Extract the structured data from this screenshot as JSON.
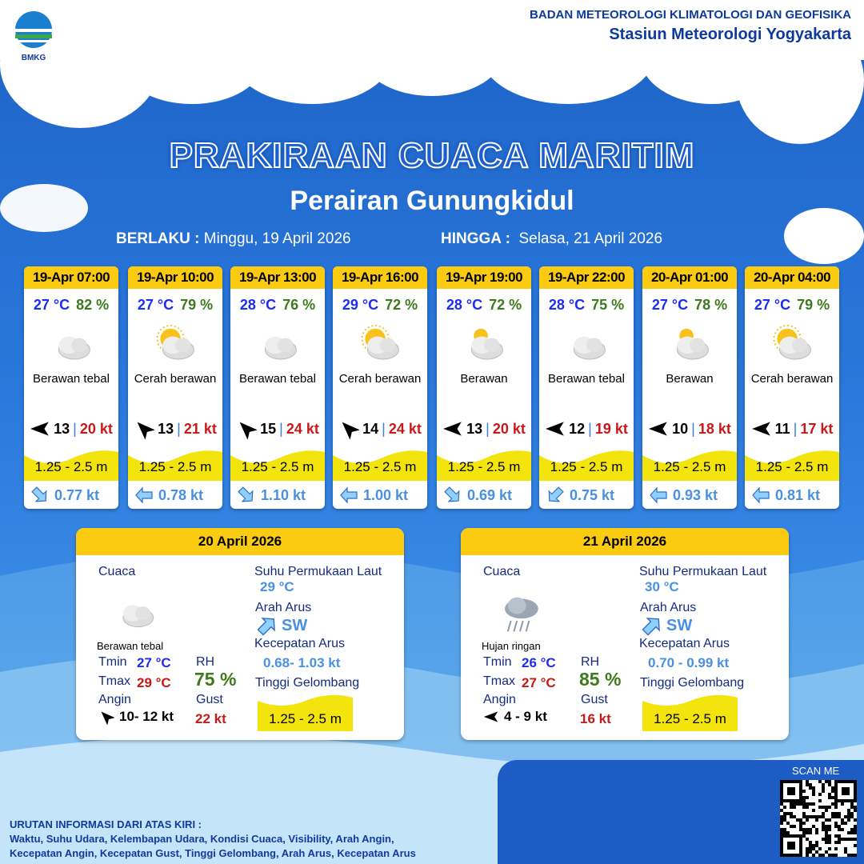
{
  "org": {
    "logo_text": "BMKG",
    "line1": "BADAN METEOROLOGI KLIMATOLOGI DAN GEOFISIKA",
    "line2": "Stasiun Meteorologi Yogyakarta"
  },
  "title": "PRAKIRAAN CUACA MARITIM",
  "subtitle": "Perairan Gunungkidul",
  "validity": {
    "from_label": "BERLAKU :",
    "from": "Minggu, 19 April 2026",
    "to_label": "HINGGA :",
    "to": "Selasa, 21 April 2026"
  },
  "forecasts": [
    {
      "time": "19-Apr 07:00",
      "temp": "27 °C",
      "rh": "82 %",
      "icon": "cloudy",
      "cond": "Berawan tebal",
      "wind_dir": "E",
      "wind": "13",
      "gust": "20 kt",
      "wave": "1.25 - 2.5 m",
      "current_dir": "NW",
      "current": "0.77 kt"
    },
    {
      "time": "19-Apr 10:00",
      "temp": "27 °C",
      "rh": "79 %",
      "icon": "partly-sunny",
      "cond": "Cerah berawan",
      "wind_dir": "SE",
      "wind": "13",
      "gust": "21 kt",
      "wave": "1.25 - 2.5 m",
      "current_dir": "E",
      "current": "0.78 kt"
    },
    {
      "time": "19-Apr 13:00",
      "temp": "28 °C",
      "rh": "76 %",
      "icon": "cloudy",
      "cond": "Berawan tebal",
      "wind_dir": "SE",
      "wind": "15",
      "gust": "24 kt",
      "wave": "1.25 - 2.5 m",
      "current_dir": "NW",
      "current": "1.10 kt"
    },
    {
      "time": "19-Apr 16:00",
      "temp": "29 °C",
      "rh": "72 %",
      "icon": "partly-sunny",
      "cond": "Cerah berawan",
      "wind_dir": "SE",
      "wind": "14",
      "gust": "24 kt",
      "wave": "1.25 - 2.5 m",
      "current_dir": "E",
      "current": "1.00 kt"
    },
    {
      "time": "19-Apr 19:00",
      "temp": "28 °C",
      "rh": "72 %",
      "icon": "mostly-cloudy",
      "cond": "Berawan",
      "wind_dir": "E",
      "wind": "13",
      "gust": "20 kt",
      "wave": "1.25 - 2.5 m",
      "current_dir": "NW",
      "current": "0.69 kt"
    },
    {
      "time": "19-Apr 22:00",
      "temp": "28 °C",
      "rh": "75 %",
      "icon": "cloudy",
      "cond": "Berawan tebal",
      "wind_dir": "E",
      "wind": "12",
      "gust": "19 kt",
      "wave": "1.25 - 2.5 m",
      "current_dir": "NE",
      "current": "0.75 kt"
    },
    {
      "time": "20-Apr 01:00",
      "temp": "27 °C",
      "rh": "78 %",
      "icon": "mostly-cloudy",
      "cond": "Berawan",
      "wind_dir": "E",
      "wind": "10",
      "gust": "18 kt",
      "wave": "1.25 - 2.5 m",
      "current_dir": "E",
      "current": "0.93 kt"
    },
    {
      "time": "20-Apr 04:00",
      "temp": "27 °C",
      "rh": "79 %",
      "icon": "partly-sunny",
      "cond": "Cerah berawan",
      "wind_dir": "E",
      "wind": "11",
      "gust": "17 kt",
      "wave": "1.25 - 2.5 m",
      "current_dir": "E",
      "current": "0.81 kt"
    }
  ],
  "labels": {
    "cuaca": "Cuaca",
    "sst": "Suhu Permukaan Laut",
    "arah": "Arah Arus",
    "kec": "Kecepatan Arus",
    "tinggi": "Tinggi Gelombang",
    "tmin": "Tmin",
    "tmax": "Tmax",
    "rh": "RH",
    "angin": "Angin",
    "gust": "Gust"
  },
  "daily": [
    {
      "date": "20 April 2026",
      "icon": "cloudy",
      "cond": "Berawan tebal",
      "tmin": "27 °C",
      "tmax": "29 °C",
      "rh": "75 %",
      "wind_dir": "SE",
      "wind": "10- 12 kt",
      "gust": "22 kt",
      "sst": "29 °C",
      "current_dir": "SW",
      "current": "0.68- 1.03 kt",
      "wave": "1.25 - 2.5 m"
    },
    {
      "date": "21 April 2026",
      "icon": "light-rain",
      "cond": "Hujan ringan",
      "tmin": "26 °C",
      "tmax": "27 °C",
      "rh": "85 %",
      "wind_dir": "E",
      "wind": "4  - 9 kt",
      "gust": "16 kt",
      "sst": "30 °C",
      "current_dir": "SW",
      "current": "0.70 - 0.99 kt",
      "wave": "1.25 - 2.5 m"
    }
  ],
  "footer": {
    "heading": "URUTAN INFORMASI DARI ATAS KIRI :",
    "line1": "Waktu, Suhu Udara, Kelembapan Udara, Kondisi Cuaca, Visibility, Arah Angin,",
    "line2": "Kecepatan Angin, Kecepatan Gust, Tinggi Gelombang, Arah Arus, Kecepatan Arus"
  },
  "qr": {
    "label": "SCAN ME"
  },
  "colors": {
    "header_yellow": "#fbcb12",
    "wave_yellow": "#f2e40c",
    "temp_blue": "#1d2df0",
    "rh_green": "#3d7a1c",
    "gust_red": "#c81818",
    "current_blue": "#4a90e2"
  }
}
